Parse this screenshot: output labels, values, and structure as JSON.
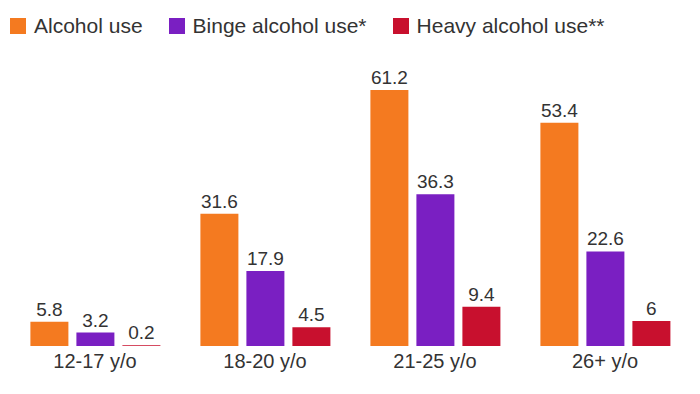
{
  "chart_data": {
    "type": "bar",
    "categories": [
      "12-17 y/o",
      "18-20 y/o",
      "21-25 y/o",
      "26+ y/o"
    ],
    "series": [
      {
        "name": "Alcohol use",
        "color": "#f47a20",
        "values": [
          5.8,
          31.6,
          61.2,
          53.4
        ]
      },
      {
        "name": "Binge alcohol use*",
        "color": "#7a1fc2",
        "values": [
          3.2,
          17.9,
          36.3,
          22.6
        ]
      },
      {
        "name": "Heavy alcohol use**",
        "color": "#c8102e",
        "values": [
          0.2,
          4.5,
          9.4,
          6.0
        ]
      }
    ],
    "data_labels": true,
    "tick_labels": "x",
    "legend": "top"
  }
}
